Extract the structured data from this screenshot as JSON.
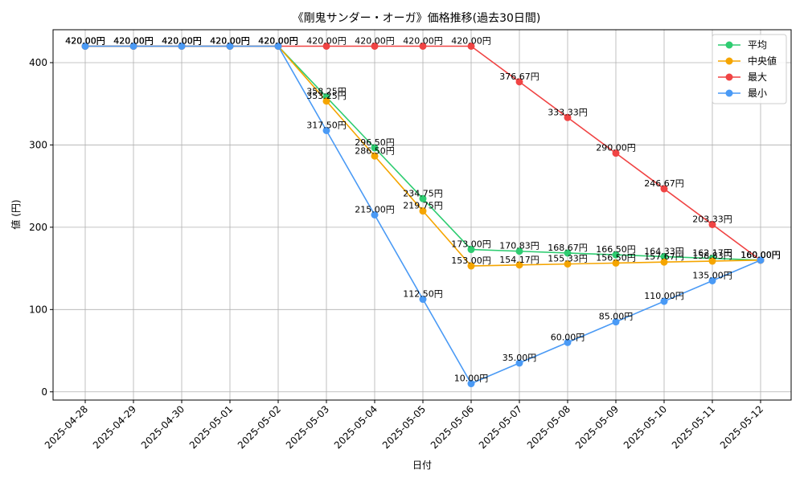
{
  "chart_data": {
    "type": "line",
    "title": "《剛鬼サンダー・オーガ》価格推移(過去30日間)",
    "xlabel": "日付",
    "ylabel": "値 (円)",
    "ylim": [
      -10,
      440
    ],
    "yticks": [
      0,
      100,
      200,
      300,
      400
    ],
    "grid": true,
    "legend_position": "top-right",
    "x": [
      "2025-04-28",
      "2025-04-29",
      "2025-04-30",
      "2025-05-01",
      "2025-05-02",
      "2025-05-03",
      "2025-05-04",
      "2025-05-05",
      "2025-05-06",
      "2025-05-07",
      "2025-05-08",
      "2025-05-09",
      "2025-05-10",
      "2025-05-11",
      "2025-05-12"
    ],
    "series": [
      {
        "name": "平均",
        "color": "#2ecc71",
        "values": [
          420.0,
          420.0,
          420.0,
          420.0,
          420.0,
          358.25,
          296.5,
          234.75,
          173.0,
          170.83,
          168.67,
          166.5,
          164.33,
          162.17,
          160.0
        ],
        "labels": [
          "420.00円",
          "420.00円",
          "420.00円",
          "420.00円",
          "420.00円",
          "358.25円",
          "296.50円",
          "234.75円",
          "173.00円",
          "170.83円",
          "168.67円",
          "166.50円",
          "164.33円",
          "162.17円",
          "160.00円"
        ]
      },
      {
        "name": "中央値",
        "color": "#f5a500",
        "values": [
          420.0,
          420.0,
          420.0,
          420.0,
          420.0,
          353.25,
          286.5,
          219.75,
          153.0,
          154.17,
          155.33,
          156.5,
          157.67,
          158.83,
          160.0
        ],
        "labels": [
          "420.00円",
          "420.00円",
          "420.00円",
          "420.00円",
          "420.00円",
          "353.25円",
          "286.50円",
          "219.75円",
          "153.00円",
          "154.17円",
          "155.33円",
          "156.50円",
          "157.67円",
          "158.83円",
          "160.00円"
        ]
      },
      {
        "name": "最大",
        "color": "#f04444",
        "values": [
          420.0,
          420.0,
          420.0,
          420.0,
          420.0,
          420.0,
          420.0,
          420.0,
          420.0,
          376.67,
          333.33,
          290.0,
          246.67,
          203.33,
          160.0
        ],
        "labels": [
          "420.00円",
          "420.00円",
          "420.00円",
          "420.00円",
          "420.00円",
          "420.00円",
          "420.00円",
          "420.00円",
          "420.00円",
          "376.67円",
          "333.33円",
          "290.00円",
          "246.67円",
          "203.33円",
          "160.00円"
        ]
      },
      {
        "name": "最小",
        "color": "#4a9af5",
        "values": [
          420.0,
          420.0,
          420.0,
          420.0,
          420.0,
          317.5,
          215.0,
          112.5,
          10.0,
          35.0,
          60.0,
          85.0,
          110.0,
          135.0,
          160.0
        ],
        "labels": [
          "420.00円",
          "420.00円",
          "420.00円",
          "420.00円",
          "420.00円",
          "317.50円",
          "215.00円",
          "112.50円",
          "10.00円",
          "35.00円",
          "60.00円",
          "85.00円",
          "110.00円",
          "135.00円",
          "160.00円"
        ]
      }
    ]
  }
}
